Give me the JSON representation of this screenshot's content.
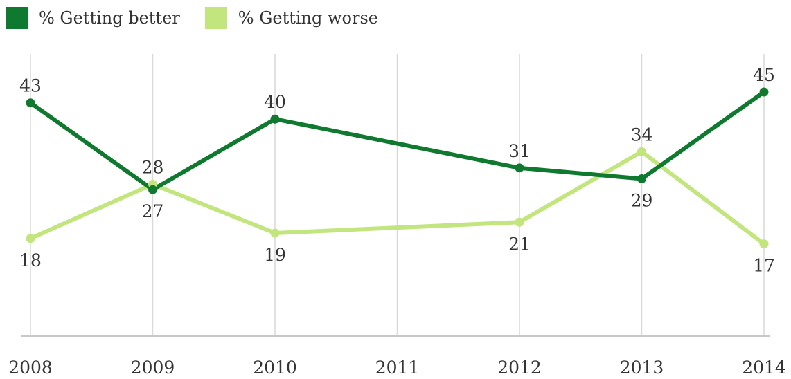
{
  "chart_data": {
    "type": "line",
    "categories": [
      "2008",
      "2009",
      "2010",
      "2011",
      "2012",
      "2013",
      "2014"
    ],
    "series": [
      {
        "name": "% Getting better",
        "color": "#0f7a2f",
        "values": [
          43,
          27,
          40,
          null,
          31,
          29,
          45
        ]
      },
      {
        "name": "% Getting worse",
        "color": "#c2e57e",
        "values": [
          18,
          28,
          19,
          null,
          21,
          34,
          17
        ]
      }
    ],
    "ylim": [
      0,
      50
    ],
    "grid": "vertical",
    "legend": "top-left"
  }
}
